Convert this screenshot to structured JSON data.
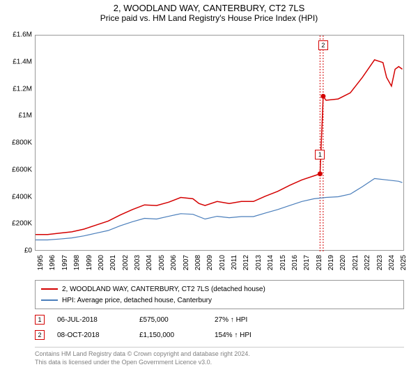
{
  "title": {
    "line1": "2, WOODLAND WAY, CANTERBURY, CT2 7LS",
    "line2": "Price paid vs. HM Land Registry's House Price Index (HPI)"
  },
  "chart": {
    "type": "line",
    "background_color": "#ffffff",
    "grid_color": "#c0c0c0",
    "border_color": "#999999",
    "ylim": [
      0,
      1600000
    ],
    "ytick_step": 200000,
    "yticks": [
      {
        "v": 0,
        "label": "£0"
      },
      {
        "v": 200000,
        "label": "£200K"
      },
      {
        "v": 400000,
        "label": "£400K"
      },
      {
        "v": 600000,
        "label": "£600K"
      },
      {
        "v": 800000,
        "label": "£800K"
      },
      {
        "v": 1000000,
        "label": "£1M"
      },
      {
        "v": 1200000,
        "label": "£1.2M"
      },
      {
        "v": 1400000,
        "label": "£1.4M"
      },
      {
        "v": 1600000,
        "label": "£1.6M"
      }
    ],
    "xlim": [
      1995,
      2025.5
    ],
    "xticks": [
      1995,
      1996,
      1997,
      1998,
      1999,
      2000,
      2001,
      2002,
      2003,
      2004,
      2005,
      2006,
      2007,
      2008,
      2009,
      2010,
      2011,
      2012,
      2013,
      2014,
      2015,
      2016,
      2017,
      2018,
      2019,
      2020,
      2021,
      2022,
      2023,
      2024,
      2025
    ],
    "series": [
      {
        "id": "subject",
        "color": "#d40000",
        "line_width": 1.5,
        "points": [
          [
            1995,
            125000
          ],
          [
            1996,
            125000
          ],
          [
            1997,
            135000
          ],
          [
            1998,
            145000
          ],
          [
            1999,
            165000
          ],
          [
            2000,
            195000
          ],
          [
            2001,
            225000
          ],
          [
            2002,
            270000
          ],
          [
            2003,
            310000
          ],
          [
            2004,
            345000
          ],
          [
            2005,
            340000
          ],
          [
            2006,
            365000
          ],
          [
            2007,
            400000
          ],
          [
            2008,
            390000
          ],
          [
            2008.5,
            355000
          ],
          [
            2009,
            340000
          ],
          [
            2010,
            370000
          ],
          [
            2011,
            355000
          ],
          [
            2012,
            370000
          ],
          [
            2013,
            370000
          ],
          [
            2014,
            410000
          ],
          [
            2015,
            445000
          ],
          [
            2016,
            490000
          ],
          [
            2017,
            530000
          ],
          [
            2018,
            560000
          ],
          [
            2018.5,
            575000
          ],
          [
            2018.76,
            1150000
          ],
          [
            2019,
            1120000
          ],
          [
            2020,
            1130000
          ],
          [
            2021,
            1175000
          ],
          [
            2022,
            1290000
          ],
          [
            2022.7,
            1380000
          ],
          [
            2023,
            1420000
          ],
          [
            2023.7,
            1400000
          ],
          [
            2024,
            1290000
          ],
          [
            2024.4,
            1225000
          ],
          [
            2024.7,
            1350000
          ],
          [
            2025,
            1370000
          ],
          [
            2025.3,
            1350000
          ]
        ]
      },
      {
        "id": "hpi",
        "color": "#4a7ebb",
        "line_width": 1.2,
        "points": [
          [
            1995,
            85000
          ],
          [
            1996,
            85000
          ],
          [
            1997,
            92000
          ],
          [
            1998,
            100000
          ],
          [
            1999,
            115000
          ],
          [
            2000,
            135000
          ],
          [
            2001,
            155000
          ],
          [
            2002,
            190000
          ],
          [
            2003,
            220000
          ],
          [
            2004,
            245000
          ],
          [
            2005,
            240000
          ],
          [
            2006,
            260000
          ],
          [
            2007,
            280000
          ],
          [
            2008,
            275000
          ],
          [
            2009,
            240000
          ],
          [
            2010,
            260000
          ],
          [
            2011,
            250000
          ],
          [
            2012,
            258000
          ],
          [
            2013,
            258000
          ],
          [
            2014,
            285000
          ],
          [
            2015,
            310000
          ],
          [
            2016,
            340000
          ],
          [
            2017,
            370000
          ],
          [
            2018,
            390000
          ],
          [
            2019,
            400000
          ],
          [
            2020,
            405000
          ],
          [
            2021,
            425000
          ],
          [
            2022,
            480000
          ],
          [
            2023,
            540000
          ],
          [
            2024,
            530000
          ],
          [
            2025,
            520000
          ],
          [
            2025.3,
            510000
          ]
        ]
      }
    ],
    "transaction_markers": [
      {
        "n": "1",
        "x": 2018.5,
        "y": 575000,
        "label_y": 720000
      },
      {
        "n": "2",
        "x": 2018.76,
        "y": 1150000,
        "label_y": 1530000
      }
    ],
    "marker_box_color": "#d40000",
    "marker_vline_color": "#d40000",
    "marker_dot_color": "#d40000"
  },
  "legend": {
    "items": [
      {
        "color": "#d40000",
        "label": "2, WOODLAND WAY, CANTERBURY, CT2 7LS (detached house)"
      },
      {
        "color": "#4a7ebb",
        "label": "HPI: Average price, detached house, Canterbury"
      }
    ]
  },
  "transactions": [
    {
      "n": "1",
      "date": "06-JUL-2018",
      "price": "£575,000",
      "delta": "27% ↑ HPI"
    },
    {
      "n": "2",
      "date": "08-OCT-2018",
      "price": "£1,150,000",
      "delta": "154% ↑ HPI"
    }
  ],
  "footer": {
    "line1": "Contains HM Land Registry data © Crown copyright and database right 2024.",
    "line2": "This data is licensed under the Open Government Licence v3.0."
  },
  "fonts": {
    "title_fontsize": 13,
    "subtitle_fontsize": 12,
    "tick_fontsize": 10,
    "legend_fontsize": 10,
    "footer_fontsize": 9
  }
}
